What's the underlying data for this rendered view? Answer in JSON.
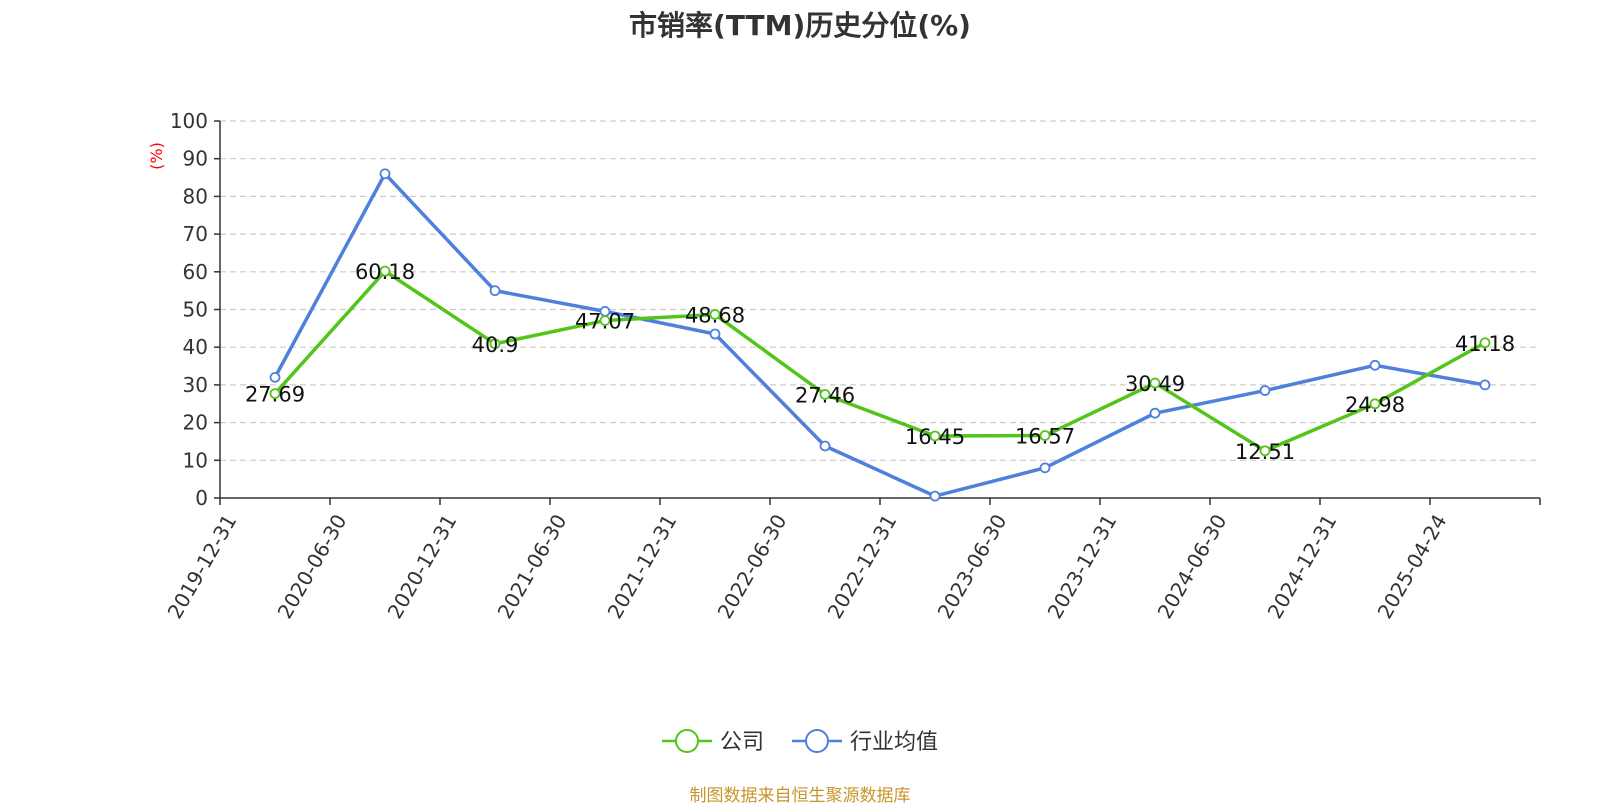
{
  "chart_data": {
    "type": "line",
    "title": "市销率(TTM)历史分位(%)",
    "ylabel": "(%)",
    "xlabel": "",
    "ylim": [
      0,
      100
    ],
    "yticks": [
      0,
      10,
      20,
      30,
      40,
      50,
      60,
      70,
      80,
      90,
      100
    ],
    "grid": true,
    "legend_position": "bottom",
    "categories": [
      "2019-12-31",
      "2020-06-30",
      "2020-12-31",
      "2021-06-30",
      "2021-12-31",
      "2022-06-30",
      "2022-12-31",
      "2023-06-30",
      "2023-12-31",
      "2024-06-30",
      "2024-12-31",
      "2025-04-24"
    ],
    "series": [
      {
        "name": "公司",
        "color": "#52c41a",
        "values": [
          27.69,
          60.18,
          40.9,
          47.07,
          48.68,
          27.46,
          16.45,
          16.57,
          30.49,
          12.51,
          24.98,
          41.18
        ],
        "labels": [
          "27.69",
          "60.18",
          "40.9",
          "47.07",
          "48.68",
          "27.46",
          "16.45",
          "16.57",
          "30.49",
          "12.51",
          "24.98",
          "41.18"
        ],
        "show_labels": true
      },
      {
        "name": "行业均值",
        "color": "#4e80dc",
        "values": [
          32,
          86,
          55,
          49.5,
          43.5,
          13.8,
          0.5,
          8,
          22.5,
          28.5,
          35.2,
          30
        ],
        "show_labels": false
      }
    ]
  },
  "footer": {
    "source": "制图数据来自恒生聚源数据库"
  }
}
